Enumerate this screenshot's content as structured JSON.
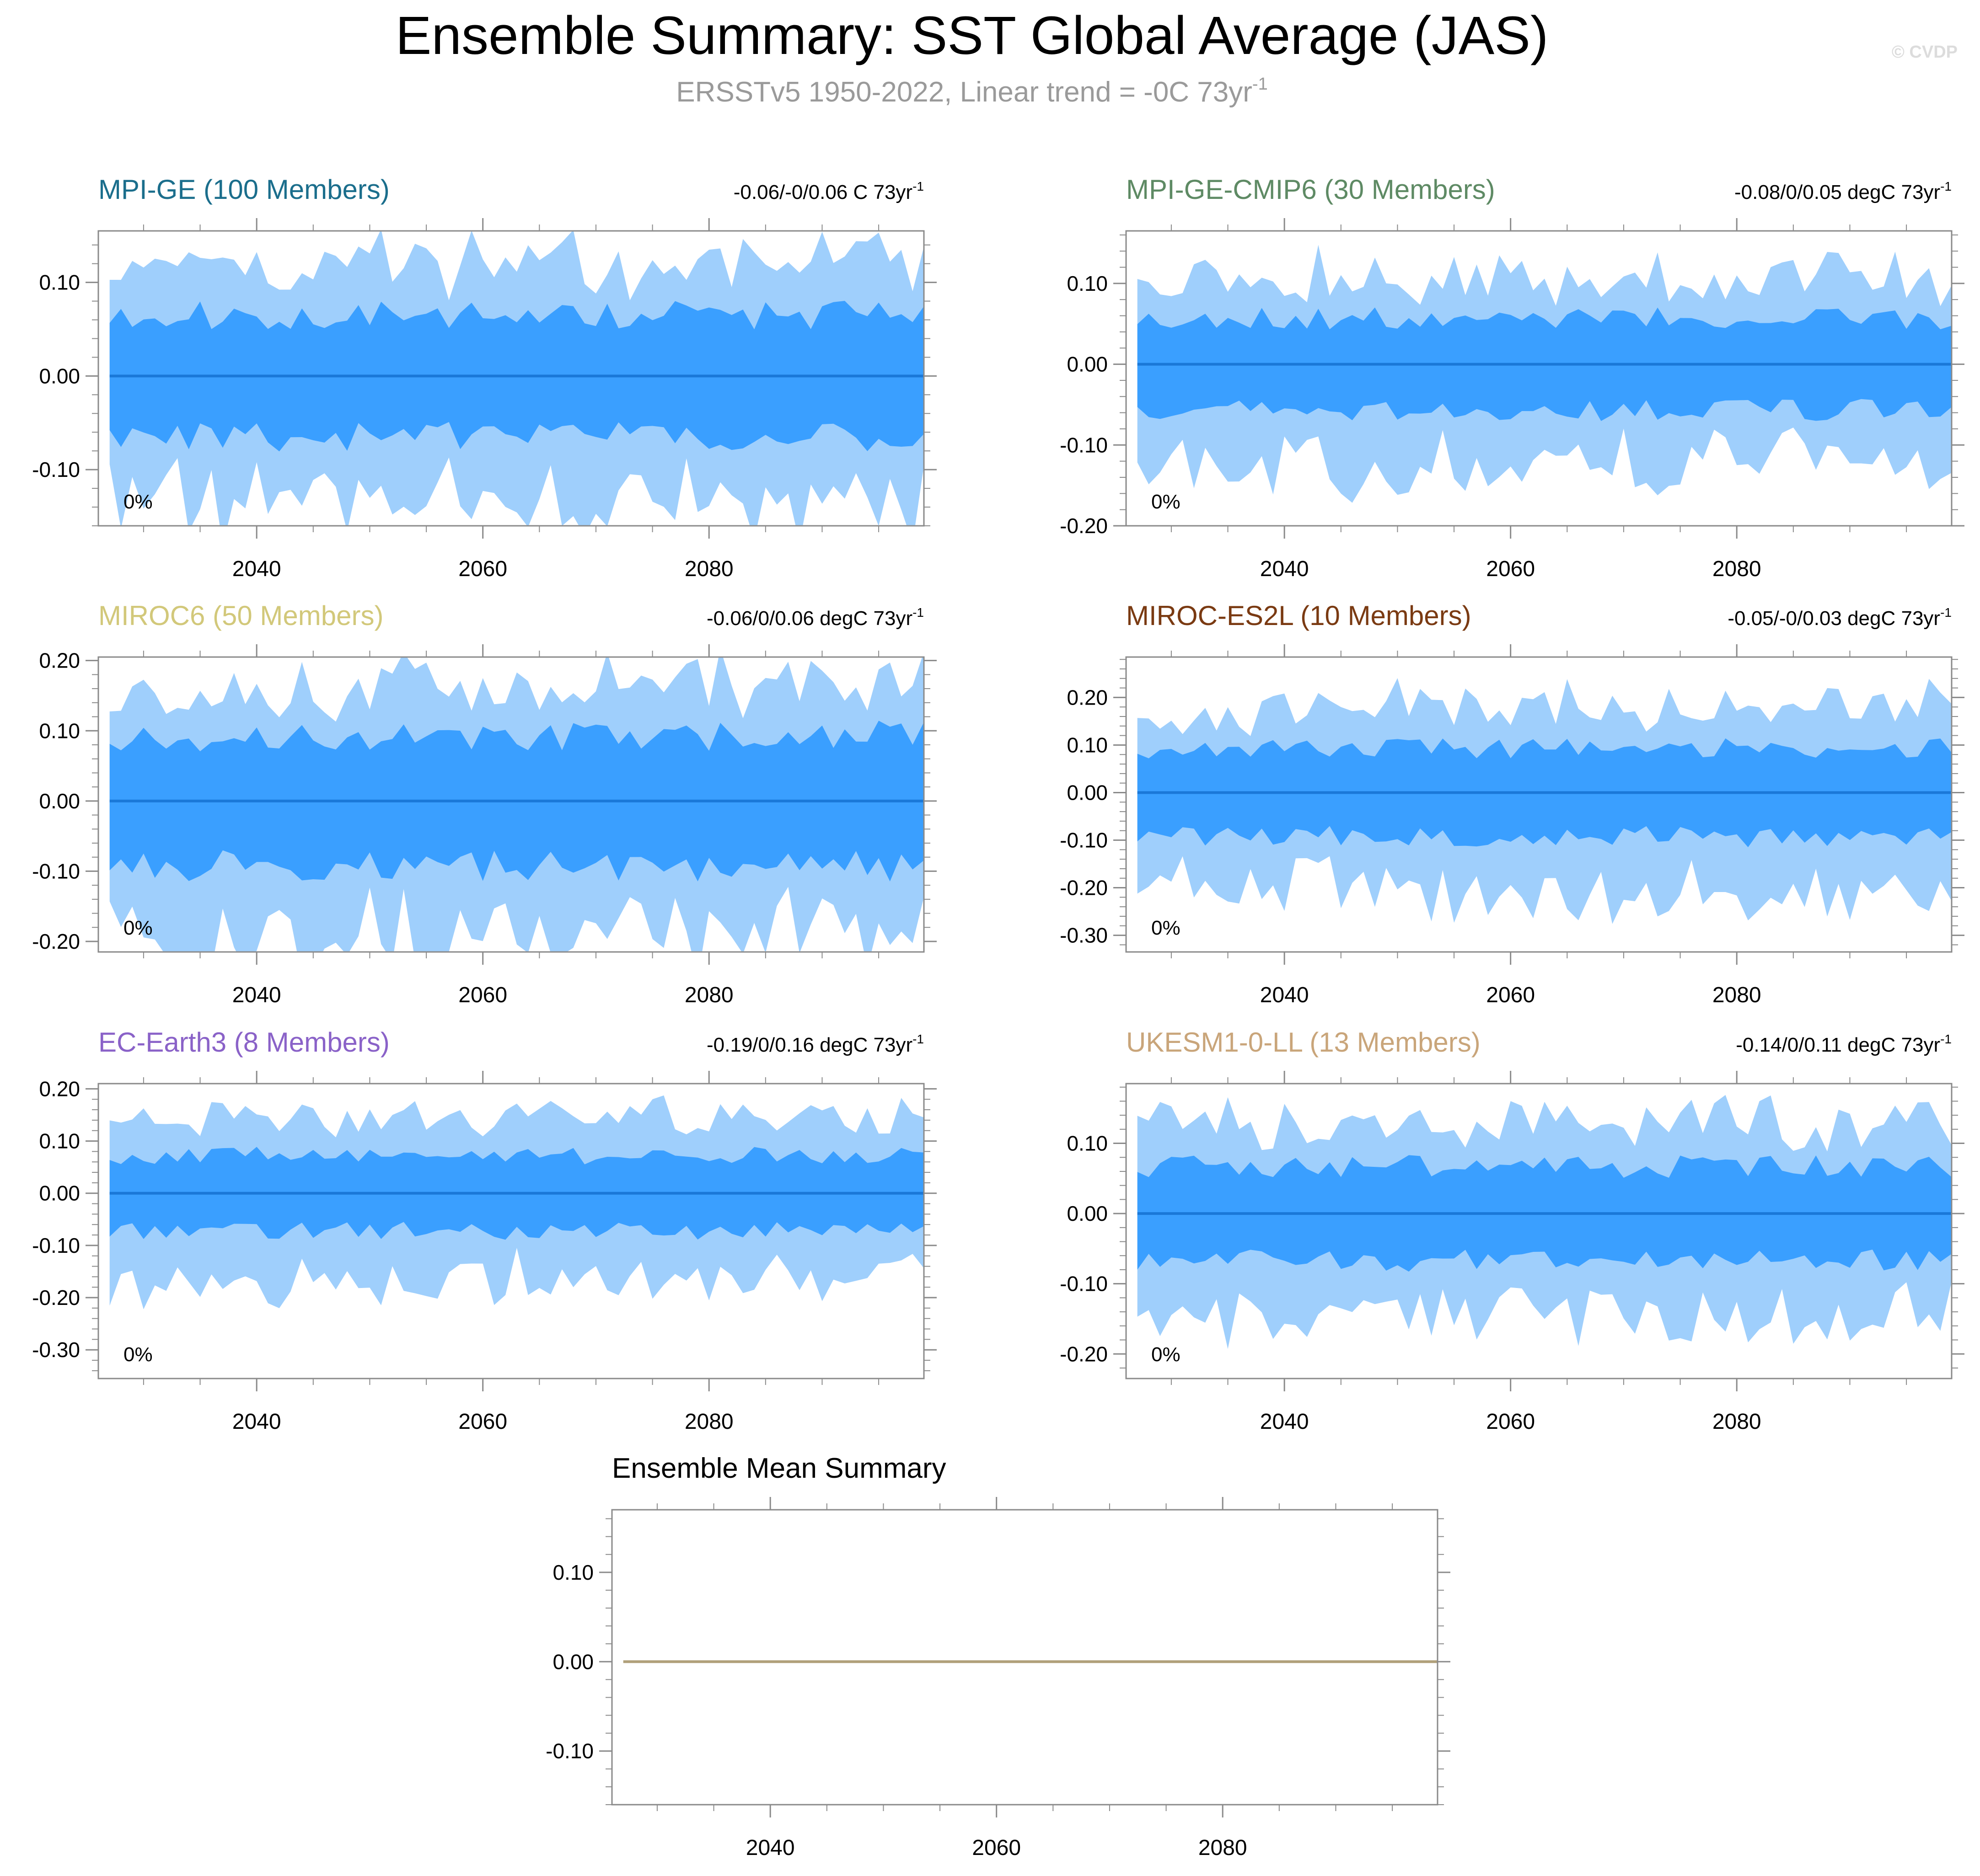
{
  "header": {
    "title": "Ensemble Summary: SST Global Average (JAS)",
    "subtitle_main": "ERSSTv5 1950-2022, Linear trend = -0C 73yr",
    "subtitle_sup": "-1",
    "watermark": "© CVDP"
  },
  "colors": {
    "outer_band": "#9fcffc",
    "inner_band": "#3a9fff",
    "mean_line": "#1a78d8",
    "axis": "#8a8a8a",
    "title": "#000000",
    "subtitle": "#9a9a9a",
    "watermark": "#dcdcdc",
    "ens_mean_line": "#b0a07a"
  },
  "chart_data": [
    {
      "type": "area",
      "id": "mpi-ge",
      "title": "MPI-GE (100 Members)",
      "title_color": "#1b6e8c",
      "trend_text": "-0.06/-0/0.06 C 73yr",
      "trend_sup": "-1",
      "pct_label": "0%",
      "xlim": [
        2026,
        2099
      ],
      "ylim": [
        -0.16,
        0.155
      ],
      "xticks": [
        2040,
        2060,
        2080
      ],
      "yticks": [
        0.1,
        0.0,
        -0.1
      ],
      "ytick_labels": [
        "0.10",
        "0.00",
        "-0.10"
      ],
      "ymin_minor": -0.15,
      "inner_amp": 0.063,
      "outer_amp": 0.125,
      "seed": 11,
      "x_start": 2027,
      "x_end": 2099
    },
    {
      "type": "area",
      "id": "mpi-ge-cmip6",
      "title": "MPI-GE-CMIP6 (30 Members)",
      "title_color": "#5e8a64",
      "trend_text": "-0.08/0/0.05 degC 73yr",
      "trend_sup": "-1",
      "pct_label": "0%",
      "xlim": [
        2026,
        2099
      ],
      "ylim": [
        -0.2,
        0.165
      ],
      "xticks": [
        2040,
        2060,
        2080
      ],
      "yticks": [
        0.1,
        0.0,
        -0.1,
        -0.2
      ],
      "ytick_labels": [
        "0.10",
        "0.00",
        "-0.10",
        "-0.20"
      ],
      "ymin_minor": -0.2,
      "inner_amp": 0.055,
      "outer_amp": 0.12,
      "seed": 23,
      "x_start": 2027,
      "x_end": 2099
    },
    {
      "type": "area",
      "id": "miroc6",
      "title": "MIROC6 (50 Members)",
      "title_color": "#d2c87a",
      "trend_text": "-0.06/0/0.06 degC 73yr",
      "trend_sup": "-1",
      "pct_label": "0%",
      "xlim": [
        2026,
        2099
      ],
      "ylim": [
        -0.215,
        0.205
      ],
      "xticks": [
        2040,
        2060,
        2080
      ],
      "yticks": [
        0.2,
        0.1,
        0.0,
        -0.1,
        -0.2
      ],
      "ytick_labels": [
        "0.20",
        "0.10",
        "0.00",
        "-0.10",
        "-0.20"
      ],
      "ymin_minor": -0.2,
      "inner_amp": 0.09,
      "outer_amp": 0.165,
      "seed": 37,
      "x_start": 2027,
      "x_end": 2099
    },
    {
      "type": "area",
      "id": "miroc-es2l",
      "title": "MIROC-ES2L (10 Members)",
      "title_color": "#7a3a12",
      "trend_text": "-0.05/-0/0.03 degC 73yr",
      "trend_sup": "-1",
      "pct_label": "0%",
      "xlim": [
        2026,
        2099
      ],
      "ylim": [
        -0.335,
        0.285
      ],
      "xticks": [
        2040,
        2060,
        2080
      ],
      "yticks": [
        0.2,
        0.1,
        0.0,
        -0.1,
        -0.2,
        -0.3
      ],
      "ytick_labels": [
        "0.20",
        "0.10",
        "0.00",
        "-0.10",
        "-0.20",
        "-0.30"
      ],
      "ymin_minor": -0.3,
      "inner_amp": 0.09,
      "outer_amp": 0.2,
      "seed": 49,
      "x_start": 2027,
      "x_end": 2099
    },
    {
      "type": "area",
      "id": "ec-earth3",
      "title": "EC-Earth3 (8 Members)",
      "title_color": "#8a62c8",
      "trend_text": "-0.19/0/0.16 degC 73yr",
      "trend_sup": "-1",
      "pct_label": "0%",
      "xlim": [
        2026,
        2099
      ],
      "ylim": [
        -0.355,
        0.21
      ],
      "xticks": [
        2040,
        2060,
        2080
      ],
      "yticks": [
        0.2,
        0.1,
        0.0,
        -0.1,
        -0.2,
        -0.3
      ],
      "ytick_labels": [
        "0.20",
        "0.10",
        "0.00",
        "-0.10",
        "-0.20",
        "-0.30"
      ],
      "ymin_minor": -0.35,
      "inner_amp": 0.07,
      "outer_amp": 0.16,
      "seed": 61,
      "x_start": 2027,
      "x_end": 2099
    },
    {
      "type": "area",
      "id": "ukesm1-0-ll",
      "title": "UKESM1-0-LL (13 Members)",
      "title_color": "#c9a57a",
      "trend_text": "-0.14/0/0.11 degC 73yr",
      "trend_sup": "-1",
      "pct_label": "0%",
      "xlim": [
        2026,
        2099
      ],
      "ylim": [
        -0.235,
        0.185
      ],
      "xticks": [
        2040,
        2060,
        2080
      ],
      "yticks": [
        0.1,
        0.0,
        -0.1,
        -0.2
      ],
      "ytick_labels": [
        "0.10",
        "0.00",
        "-0.10",
        "-0.20"
      ],
      "ymin_minor": -0.2,
      "inner_amp": 0.065,
      "outer_amp": 0.14,
      "seed": 73,
      "x_start": 2027,
      "x_end": 2099
    },
    {
      "type": "line",
      "id": "ensemble-mean",
      "title": "Ensemble Mean Summary",
      "title_color": "#000000",
      "xlim": [
        2026,
        2099
      ],
      "ylim": [
        -0.16,
        0.17
      ],
      "xticks": [
        2040,
        2060,
        2080
      ],
      "yticks": [
        0.1,
        0.0,
        -0.1
      ],
      "ytick_labels": [
        "0.10",
        "0.00",
        "-0.10"
      ],
      "ymin_minor": -0.15,
      "x": [
        2027,
        2099
      ],
      "y": [
        0.0,
        0.0
      ]
    }
  ]
}
